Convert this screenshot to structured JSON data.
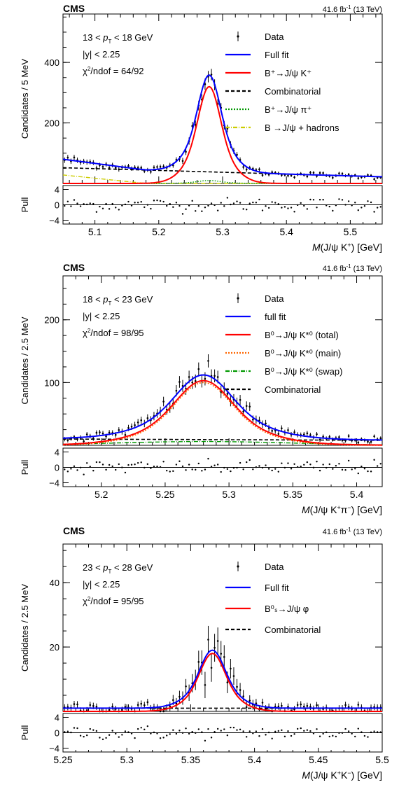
{
  "chart_data": [
    {
      "type": "line",
      "experiment": "CMS",
      "luminosity": "41.6 fb",
      "lumi_exp": "-1",
      "energy": "(13 TeV)",
      "ylabel": "Candidates / 5 MeV",
      "xlabel_prefix": "M",
      "xlabel_rest": "(J/ψ K",
      "xlabel_sup": "+",
      "xlabel_tail": ") [GeV]",
      "xlim": [
        5.05,
        5.55
      ],
      "ylim": [
        0,
        560
      ],
      "xticks": [
        "5.1",
        "5.2",
        "5.3",
        "5.4",
        "5.5"
      ],
      "xtick_values": [
        5.1,
        5.2,
        5.3,
        5.4,
        5.5
      ],
      "yticks": [
        "200",
        "400"
      ],
      "ytick_values": [
        200,
        400
      ],
      "info": {
        "pt_line": "13 < p",
        "pt_sub": "T",
        "pt_tail": " < 18 GeV",
        "y_line": "|y| < 2.25",
        "chi_line": "/ndof = 64/92"
      },
      "legend": [
        {
          "label": "Data",
          "style": "data",
          "color": "#000000"
        },
        {
          "label": "Full fit",
          "style": "solid",
          "color": "#0000ff"
        },
        {
          "label": "B⁺→J/ψ K⁺",
          "style": "solid",
          "color": "#ff0000"
        },
        {
          "label": "Combinatorial",
          "style": "dash",
          "color": "#000000"
        },
        {
          "label": "B⁺→J/ψ π⁺",
          "style": "dot",
          "color": "#009900"
        },
        {
          "label": "B →J/ψ + hadrons",
          "style": "dashdot",
          "color": "#cccc00"
        }
      ],
      "signal": {
        "mean": 5.279,
        "width": 0.016,
        "peak": 320
      },
      "combinatorial": {
        "at_min": 52,
        "at_max": 22
      },
      "partial_bkg": {
        "peak_at_min": 28,
        "edge": 5.18
      },
      "pull_ylabel": "Pull",
      "pull_yticks": [
        "4",
        "0",
        "−4"
      ],
      "pull_ytick_values": [
        4,
        0,
        -4
      ]
    },
    {
      "type": "line",
      "experiment": "CMS",
      "luminosity": "41.6 fb",
      "lumi_exp": "-1",
      "energy": "(13 TeV)",
      "ylabel": "Candidates / 2.5 MeV",
      "xlabel_prefix": "M",
      "xlabel_rest": "(J/ψ K",
      "xlabel_sup": "+",
      "xlabel_mid": "π",
      "xlabel_sup2": "−",
      "xlabel_tail": ") [GeV]",
      "xlim": [
        5.17,
        5.42
      ],
      "ylim": [
        0,
        270
      ],
      "xticks": [
        "5.2",
        "5.25",
        "5.3",
        "5.35",
        "5.4"
      ],
      "xtick_values": [
        5.2,
        5.25,
        5.3,
        5.35,
        5.4
      ],
      "yticks": [
        "100",
        "200"
      ],
      "ytick_values": [
        100,
        200
      ],
      "info": {
        "pt_line": "18 < p",
        "pt_sub": "T",
        "pt_tail": " < 23 GeV",
        "y_line": "|y| < 2.25",
        "chi_line": "/ndof = 98/95"
      },
      "legend": [
        {
          "label": "Data",
          "style": "data",
          "color": "#000000"
        },
        {
          "label": "full fit",
          "style": "solid",
          "color": "#0000ff"
        },
        {
          "label": "B⁰→J/ψ K*⁰ (total)",
          "style": "solid",
          "color": "#ff0000"
        },
        {
          "label": "B⁰→J/ψ K*⁰ (main)",
          "style": "dot",
          "color": "#ff6600"
        },
        {
          "label": "B⁰→J/ψ K*⁰ (swap)",
          "style": "dashdot",
          "color": "#009900"
        },
        {
          "label": "Combinatorial",
          "style": "dash",
          "color": "#000000"
        }
      ],
      "signal": {
        "mean": 5.28,
        "width": 0.02,
        "peak": 100
      },
      "combinatorial": {
        "at_min": 10,
        "at_max": 8
      },
      "swap": {
        "mean": 5.28,
        "width": 0.07,
        "peak": 6
      },
      "pull_ylabel": "Pull",
      "pull_yticks": [
        "4",
        "0",
        "−4"
      ],
      "pull_ytick_values": [
        4,
        0,
        -4
      ]
    },
    {
      "type": "line",
      "experiment": "CMS",
      "luminosity": "41.6 fb",
      "lumi_exp": "-1",
      "energy": "(13 TeV)",
      "ylabel": "Candidates / 2.5 MeV",
      "xlabel_prefix": "M",
      "xlabel_rest": "(J/ψ K",
      "xlabel_sup": "+",
      "xlabel_mid": "K",
      "xlabel_sup2": "−",
      "xlabel_tail": ") [GeV]",
      "xlim": [
        5.25,
        5.5
      ],
      "ylim": [
        0,
        52
      ],
      "xticks": [
        "5.25",
        "5.3",
        "5.35",
        "5.4",
        "5.45",
        "5.5"
      ],
      "xtick_values": [
        5.25,
        5.3,
        5.35,
        5.4,
        5.45,
        5.5
      ],
      "yticks": [
        "20",
        "40"
      ],
      "ytick_values": [
        20,
        40
      ],
      "info": {
        "pt_line": "23 < p",
        "pt_sub": "T",
        "pt_tail": " < 28 GeV",
        "y_line": "|y| < 2.25",
        "chi_line": "/ndof = 95/95"
      },
      "legend": [
        {
          "label": "Data",
          "style": "data",
          "color": "#000000"
        },
        {
          "label": "Full fit",
          "style": "solid",
          "color": "#0000ff"
        },
        {
          "label": "B⁰ₛ→J/ψ φ",
          "style": "solid",
          "color": "#ff0000"
        },
        {
          "label": "Combinatorial",
          "style": "dash",
          "color": "#000000"
        }
      ],
      "signal": {
        "mean": 5.367,
        "width": 0.009,
        "peak": 18
      },
      "combinatorial": {
        "at_min": 1,
        "at_max": 1
      },
      "pull_ylabel": "Pull",
      "pull_yticks": [
        "4",
        "0",
        "−4"
      ],
      "pull_ytick_values": [
        4,
        0,
        -4
      ]
    }
  ]
}
